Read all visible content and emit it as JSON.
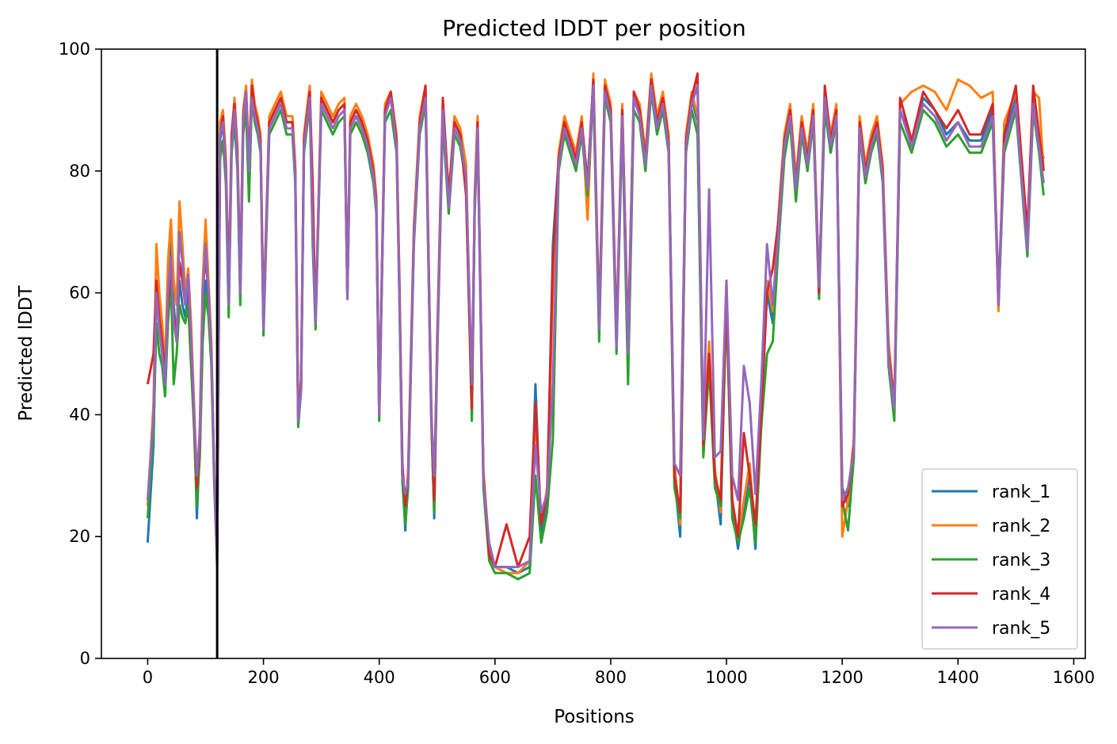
{
  "chart_data": {
    "type": "line",
    "title": "Predicted lDDT per position",
    "xlabel": "Positions",
    "ylabel": "Predicted lDDT",
    "xlim": [
      -80,
      1620
    ],
    "ylim": [
      0,
      100
    ],
    "xticks": [
      0,
      200,
      400,
      600,
      800,
      1000,
      1200,
      1400,
      1600
    ],
    "yticks": [
      0,
      20,
      40,
      60,
      80,
      100
    ],
    "grid": false,
    "legend_position": "lower right",
    "vertical_line": {
      "x": 120,
      "color": "#000000"
    },
    "x": [
      0,
      10,
      15,
      20,
      25,
      30,
      35,
      40,
      45,
      50,
      55,
      60,
      65,
      70,
      75,
      80,
      85,
      90,
      95,
      100,
      105,
      110,
      115,
      120,
      125,
      130,
      135,
      140,
      145,
      150,
      155,
      160,
      165,
      170,
      175,
      180,
      185,
      190,
      195,
      200,
      210,
      220,
      230,
      240,
      250,
      255,
      260,
      265,
      270,
      280,
      285,
      290,
      300,
      310,
      320,
      330,
      340,
      345,
      350,
      360,
      370,
      380,
      390,
      395,
      400,
      410,
      420,
      430,
      435,
      440,
      445,
      450,
      460,
      470,
      480,
      490,
      495,
      500,
      510,
      520,
      530,
      540,
      550,
      560,
      565,
      570,
      580,
      590,
      600,
      620,
      640,
      660,
      670,
      680,
      690,
      700,
      710,
      720,
      730,
      740,
      750,
      760,
      770,
      780,
      790,
      800,
      810,
      820,
      830,
      840,
      850,
      860,
      870,
      880,
      890,
      900,
      910,
      920,
      930,
      940,
      950,
      960,
      970,
      980,
      990,
      1000,
      1010,
      1020,
      1030,
      1040,
      1050,
      1060,
      1070,
      1080,
      1090,
      1100,
      1110,
      1120,
      1130,
      1140,
      1150,
      1160,
      1170,
      1180,
      1190,
      1200,
      1210,
      1220,
      1230,
      1240,
      1250,
      1260,
      1270,
      1280,
      1290,
      1300,
      1320,
      1340,
      1360,
      1380,
      1400,
      1420,
      1440,
      1460,
      1470,
      1480,
      1500,
      1520,
      1530,
      1540,
      1548
    ],
    "series": [
      {
        "name": "rank_1",
        "color": "#1f77b4",
        "values": [
          19,
          35,
          60,
          55,
          50,
          45,
          60,
          70,
          58,
          52,
          62,
          58,
          56,
          60,
          50,
          40,
          23,
          35,
          55,
          62,
          58,
          50,
          30,
          15,
          85,
          88,
          80,
          60,
          85,
          90,
          82,
          60,
          88,
          92,
          80,
          94,
          90,
          88,
          85,
          55,
          88,
          90,
          92,
          88,
          88,
          80,
          40,
          45,
          85,
          93,
          70,
          55,
          92,
          90,
          88,
          90,
          91,
          60,
          88,
          90,
          88,
          85,
          80,
          75,
          40,
          90,
          92,
          85,
          60,
          30,
          21,
          30,
          70,
          88,
          93,
          40,
          23,
          50,
          90,
          75,
          88,
          86,
          80,
          40,
          75,
          88,
          30,
          17,
          15,
          15,
          14,
          15,
          45,
          20,
          25,
          68,
          82,
          88,
          85,
          82,
          88,
          78,
          95,
          55,
          94,
          90,
          52,
          90,
          50,
          92,
          90,
          82,
          95,
          88,
          92,
          85,
          30,
          20,
          85,
          92,
          88,
          35,
          50,
          30,
          22,
          60,
          25,
          18,
          25,
          30,
          18,
          40,
          60,
          55,
          72,
          85,
          90,
          78,
          88,
          82,
          90,
          60,
          92,
          85,
          90,
          28,
          25,
          35,
          88,
          80,
          85,
          88,
          80,
          50,
          40,
          90,
          85,
          92,
          90,
          86,
          88,
          85,
          85,
          90,
          60,
          85,
          92,
          68,
          92,
          85,
          82
        ]
      },
      {
        "name": "rank_2",
        "color": "#ff7f0e",
        "values": [
          25,
          42,
          68,
          60,
          55,
          48,
          65,
          72,
          62,
          58,
          75,
          68,
          60,
          64,
          55,
          42,
          28,
          38,
          62,
          72,
          62,
          52,
          30,
          18,
          88,
          90,
          82,
          62,
          86,
          92,
          84,
          62,
          90,
          94,
          82,
          95,
          91,
          89,
          86,
          56,
          89,
          91,
          93,
          89,
          89,
          81,
          42,
          46,
          86,
          94,
          72,
          56,
          93,
          91,
          89,
          91,
          92,
          60,
          89,
          91,
          89,
          86,
          81,
          76,
          41,
          91,
          93,
          86,
          62,
          32,
          22,
          31,
          71,
          89,
          94,
          42,
          24,
          52,
          91,
          76,
          89,
          87,
          81,
          42,
          76,
          89,
          31,
          18,
          15,
          14,
          14,
          16,
          40,
          22,
          28,
          60,
          83,
          89,
          86,
          83,
          89,
          72,
          96,
          56,
          95,
          91,
          53,
          91,
          51,
          93,
          91,
          83,
          96,
          89,
          93,
          86,
          32,
          22,
          86,
          93,
          89,
          36,
          52,
          31,
          24,
          62,
          26,
          20,
          26,
          32,
          20,
          42,
          62,
          57,
          73,
          86,
          91,
          79,
          89,
          83,
          91,
          61,
          93,
          86,
          91,
          20,
          26,
          36,
          89,
          81,
          86,
          89,
          81,
          52,
          42,
          91,
          93,
          94,
          93,
          90,
          95,
          94,
          92,
          93,
          57,
          88,
          93,
          70,
          93,
          92,
          80
        ]
      },
      {
        "name": "rank_3",
        "color": "#2ca02c",
        "values": [
          23,
          37,
          55,
          50,
          48,
          43,
          55,
          62,
          45,
          50,
          58,
          56,
          55,
          58,
          48,
          38,
          25,
          33,
          52,
          60,
          56,
          48,
          28,
          16,
          82,
          85,
          78,
          56,
          83,
          88,
          80,
          58,
          86,
          90,
          75,
          92,
          88,
          86,
          83,
          53,
          86,
          88,
          90,
          86,
          86,
          78,
          38,
          44,
          83,
          91,
          68,
          54,
          90,
          88,
          86,
          88,
          89,
          59,
          86,
          88,
          86,
          83,
          78,
          73,
          39,
          88,
          90,
          83,
          58,
          29,
          22,
          28,
          68,
          86,
          91,
          39,
          24,
          48,
          88,
          73,
          86,
          84,
          78,
          39,
          73,
          86,
          28,
          16,
          14,
          14,
          13,
          14,
          30,
          19,
          24,
          36,
          80,
          86,
          83,
          80,
          86,
          76,
          93,
          52,
          92,
          88,
          50,
          88,
          45,
          90,
          88,
          80,
          93,
          86,
          90,
          83,
          28,
          23,
          83,
          90,
          86,
          33,
          48,
          28,
          25,
          58,
          23,
          19,
          23,
          28,
          19,
          38,
          50,
          52,
          68,
          82,
          88,
          75,
          86,
          80,
          88,
          59,
          90,
          83,
          88,
          26,
          21,
          33,
          86,
          78,
          83,
          86,
          78,
          48,
          39,
          88,
          83,
          90,
          88,
          84,
          86,
          83,
          83,
          88,
          58,
          83,
          90,
          66,
          90,
          83,
          76
        ]
      },
      {
        "name": "rank_4",
        "color": "#d62728",
        "values": [
          45,
          50,
          62,
          56,
          52,
          47,
          58,
          65,
          56,
          53,
          65,
          62,
          58,
          62,
          52,
          40,
          28,
          36,
          60,
          66,
          60,
          50,
          30,
          17,
          86,
          89,
          81,
          60,
          86,
          91,
          83,
          62,
          89,
          93,
          81,
          94,
          90,
          88,
          85,
          55,
          88,
          90,
          92,
          88,
          88,
          80,
          40,
          45,
          85,
          93,
          78,
          55,
          92,
          90,
          88,
          90,
          91,
          60,
          88,
          90,
          88,
          85,
          80,
          75,
          40,
          90,
          93,
          85,
          60,
          32,
          25,
          30,
          70,
          88,
          94,
          40,
          26,
          50,
          92,
          76,
          88,
          86,
          76,
          41,
          75,
          88,
          30,
          17,
          15,
          22,
          15,
          20,
          42,
          22,
          27,
          65,
          82,
          88,
          85,
          82,
          88,
          78,
          95,
          55,
          94,
          90,
          53,
          90,
          52,
          93,
          90,
          82,
          95,
          88,
          92,
          85,
          30,
          24,
          85,
          92,
          96,
          35,
          50,
          30,
          26,
          60,
          26,
          20,
          37,
          30,
          22,
          40,
          60,
          64,
          72,
          85,
          90,
          78,
          88,
          82,
          90,
          60,
          94,
          85,
          90,
          25,
          27,
          35,
          88,
          80,
          85,
          88,
          80,
          50,
          42,
          92,
          85,
          93,
          90,
          87,
          90,
          86,
          86,
          91,
          58,
          86,
          94,
          70,
          94,
          86,
          80
        ]
      },
      {
        "name": "rank_5",
        "color": "#9467bd",
        "values": [
          26,
          40,
          60,
          54,
          50,
          45,
          60,
          66,
          55,
          52,
          70,
          65,
          58,
          63,
          53,
          41,
          30,
          37,
          60,
          68,
          60,
          50,
          30,
          16,
          86,
          88,
          80,
          58,
          84,
          90,
          82,
          60,
          88,
          93,
          80,
          92,
          89,
          87,
          84,
          54,
          87,
          89,
          91,
          87,
          87,
          79,
          39,
          44,
          84,
          92,
          70,
          55,
          91,
          89,
          87,
          89,
          90,
          59,
          87,
          89,
          87,
          84,
          79,
          74,
          40,
          89,
          92,
          84,
          59,
          30,
          27,
          29,
          69,
          87,
          92,
          40,
          30,
          49,
          90,
          74,
          87,
          85,
          79,
          45,
          74,
          87,
          29,
          19,
          15,
          15,
          15,
          16,
          35,
          24,
          27,
          45,
          81,
          87,
          84,
          81,
          87,
          77,
          94,
          54,
          93,
          89,
          51,
          89,
          50,
          92,
          89,
          81,
          94,
          87,
          91,
          84,
          32,
          30,
          84,
          91,
          94,
          36,
          77,
          33,
          34,
          62,
          30,
          26,
          48,
          42,
          27,
          45,
          68,
          58,
          70,
          84,
          89,
          77,
          87,
          81,
          89,
          61,
          92,
          84,
          89,
          26,
          28,
          34,
          87,
          79,
          84,
          87,
          79,
          49,
          41,
          90,
          84,
          91,
          89,
          85,
          88,
          84,
          84,
          89,
          58,
          84,
          91,
          67,
          91,
          84,
          78
        ]
      }
    ]
  }
}
